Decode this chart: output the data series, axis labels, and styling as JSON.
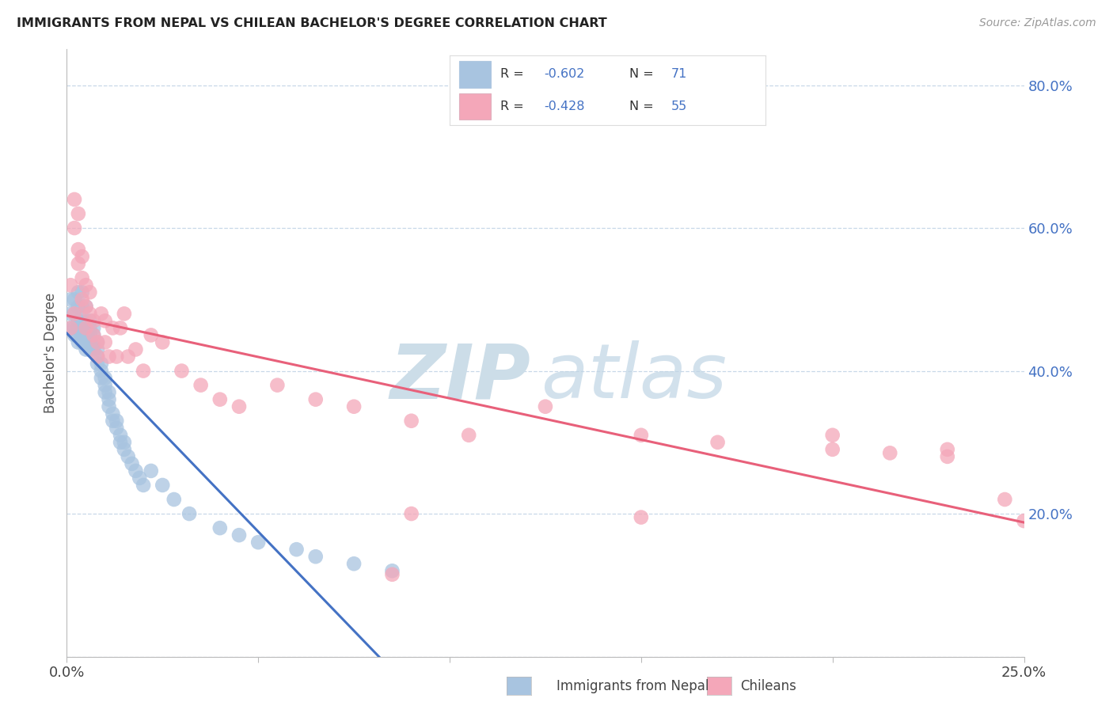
{
  "title": "IMMIGRANTS FROM NEPAL VS CHILEAN BACHELOR'S DEGREE CORRELATION CHART",
  "source": "Source: ZipAtlas.com",
  "ylabel": "Bachelor's Degree",
  "xlim": [
    0.0,
    0.25
  ],
  "ylim": [
    0.0,
    0.85
  ],
  "color_nepal": "#a8c4e0",
  "color_chilean": "#f4a7b9",
  "color_nepal_line": "#4472c4",
  "color_chilean_line": "#e8607a",
  "color_text_blue": "#4472c4",
  "watermark_zip_color": "#ccdde8",
  "watermark_atlas_color": "#bbd0e0",
  "nepal_x": [
    0.001,
    0.001,
    0.001,
    0.002,
    0.002,
    0.002,
    0.002,
    0.003,
    0.003,
    0.003,
    0.003,
    0.003,
    0.003,
    0.004,
    0.004,
    0.004,
    0.004,
    0.004,
    0.004,
    0.005,
    0.005,
    0.005,
    0.005,
    0.005,
    0.005,
    0.006,
    0.006,
    0.006,
    0.006,
    0.006,
    0.007,
    0.007,
    0.007,
    0.007,
    0.008,
    0.008,
    0.008,
    0.008,
    0.009,
    0.009,
    0.009,
    0.01,
    0.01,
    0.01,
    0.011,
    0.011,
    0.011,
    0.012,
    0.012,
    0.013,
    0.013,
    0.014,
    0.014,
    0.015,
    0.015,
    0.016,
    0.017,
    0.018,
    0.019,
    0.02,
    0.022,
    0.025,
    0.028,
    0.032,
    0.04,
    0.045,
    0.05,
    0.06,
    0.065,
    0.075,
    0.085
  ],
  "nepal_y": [
    0.46,
    0.48,
    0.5,
    0.45,
    0.46,
    0.48,
    0.5,
    0.44,
    0.45,
    0.46,
    0.47,
    0.49,
    0.51,
    0.44,
    0.45,
    0.46,
    0.47,
    0.49,
    0.51,
    0.43,
    0.44,
    0.45,
    0.46,
    0.47,
    0.49,
    0.43,
    0.44,
    0.45,
    0.46,
    0.47,
    0.43,
    0.44,
    0.45,
    0.46,
    0.41,
    0.42,
    0.43,
    0.44,
    0.39,
    0.4,
    0.41,
    0.37,
    0.38,
    0.39,
    0.35,
    0.36,
    0.37,
    0.33,
    0.34,
    0.32,
    0.33,
    0.3,
    0.31,
    0.29,
    0.3,
    0.28,
    0.27,
    0.26,
    0.25,
    0.24,
    0.26,
    0.24,
    0.22,
    0.2,
    0.18,
    0.17,
    0.16,
    0.15,
    0.14,
    0.13,
    0.12
  ],
  "chilean_x": [
    0.001,
    0.001,
    0.002,
    0.002,
    0.002,
    0.003,
    0.003,
    0.003,
    0.004,
    0.004,
    0.004,
    0.005,
    0.005,
    0.005,
    0.006,
    0.006,
    0.007,
    0.007,
    0.008,
    0.008,
    0.009,
    0.01,
    0.01,
    0.011,
    0.012,
    0.013,
    0.014,
    0.015,
    0.016,
    0.018,
    0.02,
    0.022,
    0.025,
    0.03,
    0.035,
    0.04,
    0.045,
    0.055,
    0.065,
    0.075,
    0.09,
    0.105,
    0.125,
    0.15,
    0.17,
    0.2,
    0.215,
    0.23,
    0.245,
    0.25,
    0.2,
    0.23,
    0.15,
    0.085,
    0.09
  ],
  "chilean_y": [
    0.46,
    0.52,
    0.6,
    0.64,
    0.48,
    0.55,
    0.57,
    0.62,
    0.53,
    0.56,
    0.5,
    0.49,
    0.52,
    0.46,
    0.48,
    0.51,
    0.45,
    0.47,
    0.44,
    0.42,
    0.48,
    0.47,
    0.44,
    0.42,
    0.46,
    0.42,
    0.46,
    0.48,
    0.42,
    0.43,
    0.4,
    0.45,
    0.44,
    0.4,
    0.38,
    0.36,
    0.35,
    0.38,
    0.36,
    0.35,
    0.33,
    0.31,
    0.35,
    0.31,
    0.3,
    0.31,
    0.285,
    0.29,
    0.22,
    0.19,
    0.29,
    0.28,
    0.195,
    0.115,
    0.2
  ]
}
